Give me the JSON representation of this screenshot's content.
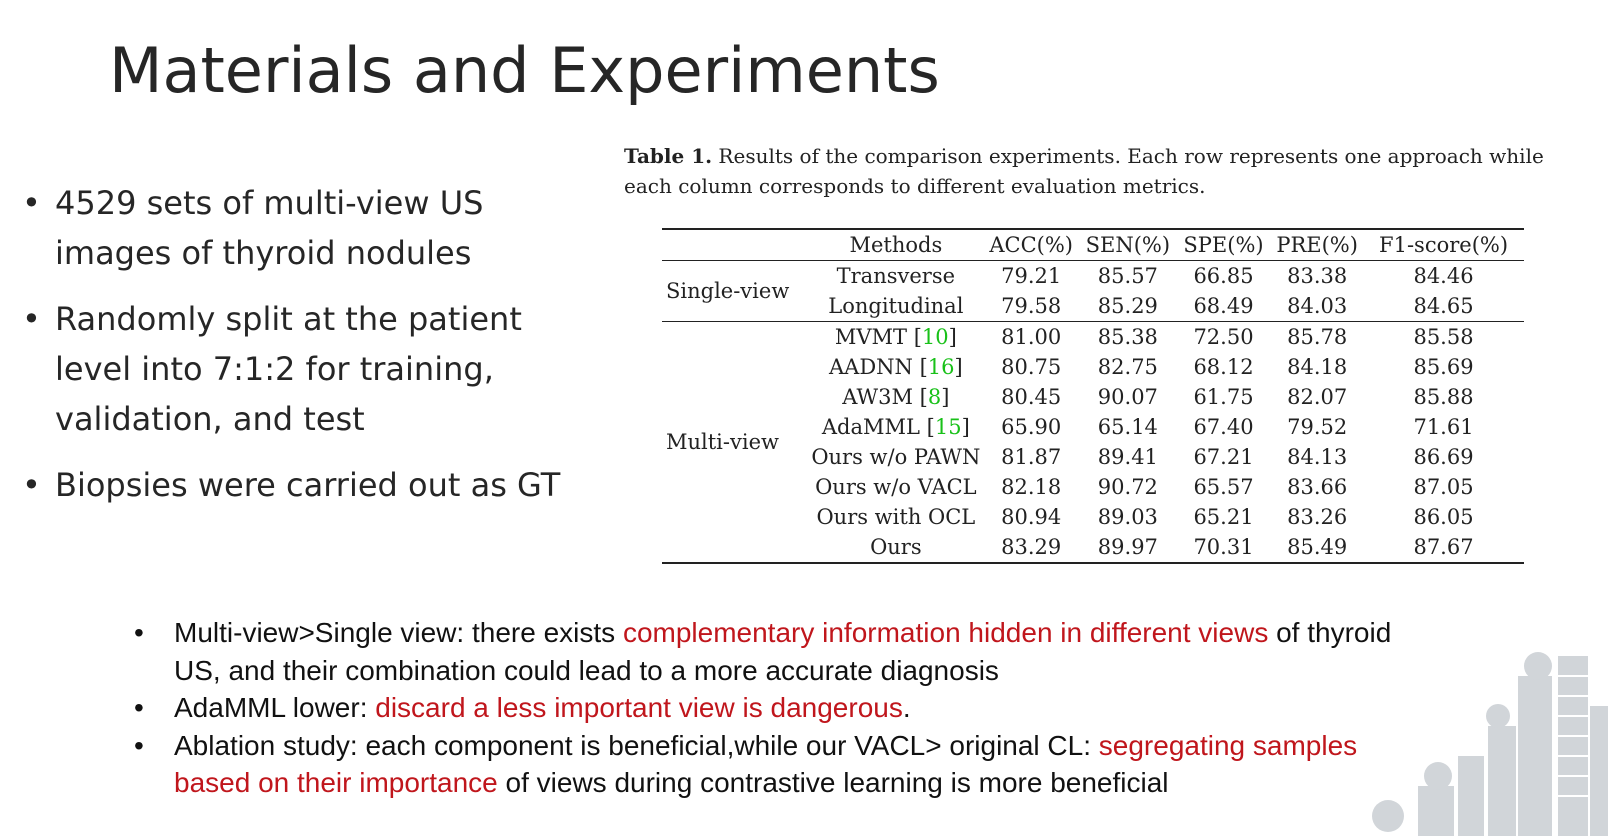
{
  "title": "Materials and Experiments",
  "left_bullets": [
    "4529 sets of multi-view US images of thyroid nodules",
    "Randomly split at the patient level into 7:1:2 for training, validation, and test",
    "Biopsies were carried out as GT"
  ],
  "table": {
    "caption_label": "Table 1.",
    "caption_text": " Results of the comparison experiments. Each row represents one approach while each column corresponds to different evaluation metrics.",
    "headers": [
      "Methods",
      "ACC(%)",
      "SEN(%)",
      "SPE(%)",
      "PRE(%)",
      "F1-score(%)"
    ],
    "groups": {
      "single": "Single-view",
      "multi": "Multi-view"
    },
    "rows": [
      {
        "method": "Transverse",
        "ref": "",
        "acc": "79.21",
        "sen": "85.57",
        "spe": "66.85",
        "pre": "83.38",
        "f1": "84.46"
      },
      {
        "method": "Longitudinal",
        "ref": "",
        "acc": "79.58",
        "sen": "85.29",
        "spe": "68.49",
        "pre": "84.03",
        "f1": "84.65"
      },
      {
        "method": "MVMT ",
        "ref": "10",
        "acc": "81.00",
        "sen": "85.38",
        "spe": "72.50",
        "pre": "85.78",
        "f1": "85.58"
      },
      {
        "method": "AADNN ",
        "ref": "16",
        "acc": "80.75",
        "sen": "82.75",
        "spe": "68.12",
        "pre": "84.18",
        "f1": "85.69"
      },
      {
        "method": "AW3M ",
        "ref": "8",
        "acc": "80.45",
        "sen": "90.07",
        "spe": "61.75",
        "pre": "82.07",
        "f1": "85.88"
      },
      {
        "method": "AdaMML ",
        "ref": "15",
        "acc": "65.90",
        "sen": "65.14",
        "spe": "67.40",
        "pre": "79.52",
        "f1": "71.61"
      },
      {
        "method": "Ours w/o PAWN",
        "ref": "",
        "acc": "81.87",
        "sen": "89.41",
        "spe": "67.21",
        "pre": "84.13",
        "f1": "86.69"
      },
      {
        "method": "Ours w/o VACL",
        "ref": "",
        "acc": "82.18",
        "sen": "90.72",
        "spe": "65.57",
        "pre": "83.66",
        "f1": "87.05"
      },
      {
        "method": "Ours with OCL",
        "ref": "",
        "acc": "80.94",
        "sen": "89.03",
        "spe": "65.21",
        "pre": "83.26",
        "f1": "86.05"
      },
      {
        "method": "Ours",
        "ref": "",
        "acc": "83.29",
        "sen": "89.97",
        "spe": "70.31",
        "pre": "85.49",
        "f1": "87.67"
      }
    ]
  },
  "bottom_bullets": {
    "b1": {
      "p1": "Multi-view>Single view: there exists ",
      "red": "complementary information hidden in different views",
      "p2": " of thyroid US, and their combination could lead to a more accurate diagnosis"
    },
    "b2": {
      "p1": "AdaMML lower: ",
      "red": "discard a less important view is dangerous",
      "p2": "."
    },
    "b3": {
      "p1": "Ablation study: each component is beneficial,while our VACL> original CL:  ",
      "red": "segregating samples based on their importance",
      "p2": " of views during contrastive learning is more beneficial"
    }
  },
  "colors": {
    "accent_red": "#c0161c",
    "reference_green": "#19c119"
  }
}
